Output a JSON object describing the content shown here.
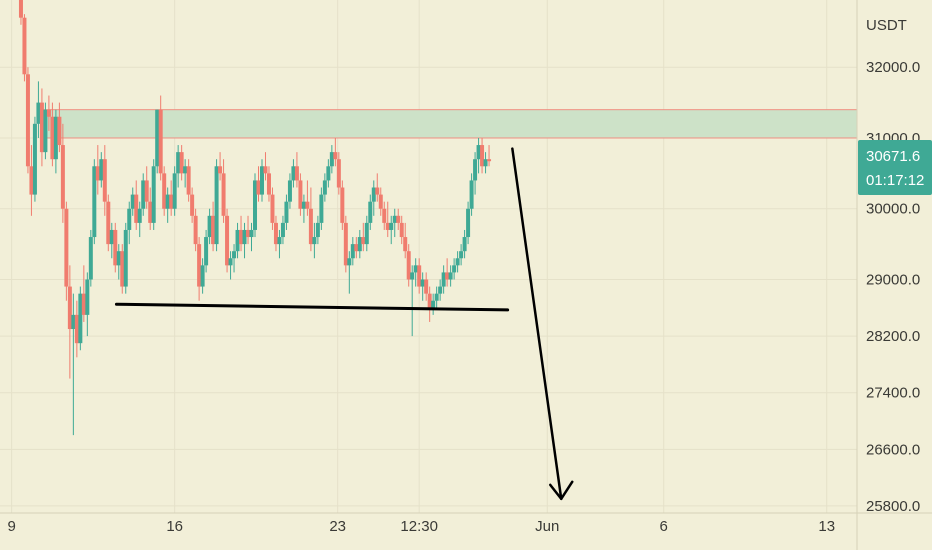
{
  "currency_label": "USDT",
  "price_badge": {
    "price": "30671.6",
    "countdown": "01:17:12",
    "color": "#3fa995"
  },
  "colors": {
    "background": "#f2efd8",
    "up": "#3fa995",
    "down": "#f07c6e",
    "zone_fill": "#cde2c8",
    "zone_border": "#ef8f82",
    "grid": "#e5e1c9",
    "drawing": "#000000"
  },
  "chart_data": {
    "type": "candlestick",
    "title": "",
    "xlabel": "",
    "ylabel": "",
    "x_ticks": [
      {
        "label": "9",
        "day": 9
      },
      {
        "label": "16",
        "day": 16
      },
      {
        "label": "23",
        "day": 23
      },
      {
        "label": "12:30",
        "day": 26.5
      },
      {
        "label": "Jun",
        "day": 32
      },
      {
        "label": "6",
        "day": 37
      },
      {
        "label": "13",
        "day": 44
      }
    ],
    "xlim": [
      8.5,
      45.3
    ],
    "y_ticks": [
      32000.0,
      31000.0,
      30000.0,
      29000.0,
      28200.0,
      27400.0,
      26600.0,
      25800.0
    ],
    "ylim": [
      25700,
      32950
    ],
    "grid": true,
    "resistance_zone": {
      "from": 31000,
      "to": 31400
    },
    "support_line": {
      "start": {
        "day": 13.5,
        "price": 28650
      },
      "end": {
        "day": 30.3,
        "price": 28570
      }
    },
    "projection_arrow": {
      "start": {
        "day": 30.5,
        "price": 30850
      },
      "end": {
        "day": 32.6,
        "price": 25900
      }
    },
    "series": [
      {
        "values": [
          [
            9.4,
            33000,
            33300,
            32600,
            32700
          ],
          [
            9.55,
            32700,
            32750,
            31800,
            31900
          ],
          [
            9.7,
            31900,
            32000,
            30500,
            30600
          ],
          [
            9.85,
            30600,
            30900,
            29900,
            30200
          ],
          [
            10.0,
            30200,
            31300,
            30100,
            31200
          ],
          [
            10.15,
            31200,
            31800,
            31000,
            31500
          ],
          [
            10.3,
            31500,
            31700,
            30600,
            30800
          ],
          [
            10.45,
            30800,
            31500,
            30700,
            31400
          ],
          [
            10.6,
            31400,
            31600,
            31100,
            31300
          ],
          [
            10.75,
            31300,
            31500,
            30600,
            30700
          ],
          [
            10.9,
            30700,
            31400,
            30500,
            31300
          ],
          [
            11.05,
            31300,
            31500,
            30800,
            30900
          ],
          [
            11.2,
            30900,
            31200,
            29800,
            30000
          ],
          [
            11.35,
            30000,
            30100,
            28700,
            28900
          ],
          [
            11.5,
            28900,
            29200,
            27600,
            28300
          ],
          [
            11.65,
            28300,
            28800,
            26800,
            28500
          ],
          [
            11.8,
            28500,
            28700,
            27900,
            28100
          ],
          [
            11.95,
            28100,
            28900,
            28000,
            28800
          ],
          [
            12.1,
            28800,
            29200,
            28400,
            28500
          ],
          [
            12.25,
            28500,
            29100,
            28200,
            29000
          ],
          [
            12.4,
            29000,
            29700,
            28900,
            29600
          ],
          [
            12.55,
            29600,
            30700,
            29500,
            30600
          ],
          [
            12.7,
            30600,
            30900,
            30200,
            30400
          ],
          [
            12.85,
            30400,
            30800,
            30300,
            30700
          ],
          [
            13.0,
            30700,
            30900,
            29900,
            30100
          ],
          [
            13.15,
            30100,
            30200,
            29400,
            29500
          ],
          [
            13.3,
            29500,
            29800,
            29300,
            29700
          ],
          [
            13.45,
            29700,
            29800,
            29100,
            29200
          ],
          [
            13.6,
            29200,
            29500,
            29000,
            29400
          ],
          [
            13.75,
            29400,
            29500,
            28800,
            28900
          ],
          [
            13.9,
            28900,
            29800,
            28800,
            29700
          ],
          [
            14.05,
            29700,
            30100,
            29500,
            30000
          ],
          [
            14.2,
            30000,
            30300,
            29900,
            30200
          ],
          [
            14.35,
            30200,
            30400,
            29700,
            29800
          ],
          [
            14.5,
            29800,
            30100,
            29600,
            30000
          ],
          [
            14.65,
            30000,
            30500,
            29900,
            30400
          ],
          [
            14.8,
            30400,
            30600,
            30000,
            30100
          ],
          [
            14.95,
            30100,
            30300,
            29700,
            29800
          ],
          [
            15.1,
            29800,
            30700,
            29700,
            30600
          ],
          [
            15.25,
            30600,
            31400,
            30500,
            31400
          ],
          [
            15.4,
            31400,
            31600,
            30400,
            30500
          ],
          [
            15.55,
            30500,
            30600,
            29900,
            30000
          ],
          [
            15.7,
            30000,
            30300,
            29800,
            30200
          ],
          [
            15.85,
            30200,
            30400,
            29900,
            30000
          ],
          [
            16.0,
            30000,
            30600,
            29900,
            30500
          ],
          [
            16.15,
            30500,
            30900,
            30300,
            30800
          ],
          [
            16.3,
            30800,
            30900,
            30400,
            30500
          ],
          [
            16.45,
            30500,
            30700,
            30300,
            30600
          ],
          [
            16.6,
            30600,
            30700,
            30100,
            30200
          ],
          [
            16.75,
            30200,
            30300,
            29800,
            29900
          ],
          [
            16.9,
            29900,
            30000,
            29400,
            29500
          ],
          [
            17.05,
            29500,
            29600,
            28700,
            28900
          ],
          [
            17.2,
            28900,
            29300,
            28800,
            29200
          ],
          [
            17.35,
            29200,
            29700,
            29100,
            29600
          ],
          [
            17.5,
            29600,
            30000,
            29500,
            29900
          ],
          [
            17.65,
            29900,
            30100,
            29400,
            29500
          ],
          [
            17.8,
            29500,
            30700,
            29400,
            30600
          ],
          [
            17.95,
            30600,
            30800,
            30400,
            30500
          ],
          [
            18.1,
            30500,
            30700,
            29800,
            29900
          ],
          [
            18.25,
            29900,
            30000,
            29100,
            29200
          ],
          [
            18.4,
            29200,
            29400,
            29000,
            29300
          ],
          [
            18.55,
            29300,
            29500,
            29100,
            29400
          ],
          [
            18.7,
            29400,
            29800,
            29300,
            29700
          ],
          [
            18.85,
            29700,
            29900,
            29400,
            29500
          ],
          [
            19.0,
            29500,
            29800,
            29300,
            29700
          ],
          [
            19.15,
            29700,
            29900,
            29500,
            29600
          ],
          [
            19.3,
            29600,
            29800,
            29400,
            29700
          ],
          [
            19.45,
            29700,
            30500,
            29600,
            30400
          ],
          [
            19.6,
            30400,
            30600,
            30100,
            30200
          ],
          [
            19.75,
            30200,
            30700,
            30100,
            30600
          ],
          [
            19.9,
            30600,
            30800,
            30400,
            30500
          ],
          [
            20.05,
            30500,
            30600,
            30100,
            30200
          ],
          [
            20.2,
            30200,
            30300,
            29700,
            29800
          ],
          [
            20.35,
            29800,
            29900,
            29400,
            29500
          ],
          [
            20.5,
            29500,
            29700,
            29300,
            29600
          ],
          [
            20.65,
            29600,
            29900,
            29500,
            29800
          ],
          [
            20.8,
            29800,
            30200,
            29700,
            30100
          ],
          [
            20.95,
            30100,
            30500,
            30000,
            30400
          ],
          [
            21.1,
            30400,
            30700,
            30300,
            30600
          ],
          [
            21.25,
            30600,
            30800,
            30300,
            30400
          ],
          [
            21.4,
            30400,
            30500,
            29900,
            30000
          ],
          [
            21.55,
            30000,
            30200,
            29800,
            30100
          ],
          [
            21.7,
            30100,
            30400,
            29900,
            30000
          ],
          [
            21.85,
            30000,
            30300,
            29400,
            29500
          ],
          [
            22.0,
            29500,
            29800,
            29300,
            29600
          ],
          [
            22.15,
            29600,
            29900,
            29500,
            29800
          ],
          [
            22.3,
            29800,
            30300,
            29700,
            30200
          ],
          [
            22.45,
            30200,
            30500,
            30100,
            30400
          ],
          [
            22.6,
            30400,
            30700,
            30300,
            30600
          ],
          [
            22.75,
            30600,
            30900,
            30500,
            30800
          ],
          [
            22.9,
            30800,
            31000,
            30600,
            30700
          ],
          [
            23.05,
            30700,
            30800,
            30200,
            30300
          ],
          [
            23.2,
            30300,
            30400,
            29700,
            29800
          ],
          [
            23.35,
            29800,
            29900,
            29100,
            29200
          ],
          [
            23.5,
            29200,
            29400,
            28800,
            29300
          ],
          [
            23.65,
            29300,
            29600,
            29200,
            29500
          ],
          [
            23.8,
            29500,
            29600,
            29300,
            29400
          ],
          [
            23.95,
            29400,
            29700,
            29300,
            29600
          ],
          [
            24.1,
            29600,
            29800,
            29400,
            29500
          ],
          [
            24.25,
            29500,
            29900,
            29400,
            29800
          ],
          [
            24.4,
            29800,
            30200,
            29700,
            30100
          ],
          [
            24.55,
            30100,
            30400,
            29900,
            30300
          ],
          [
            24.7,
            30300,
            30500,
            30100,
            30200
          ],
          [
            24.85,
            30200,
            30300,
            29900,
            30000
          ],
          [
            25.0,
            30000,
            30100,
            29700,
            29800
          ],
          [
            25.15,
            29800,
            30100,
            29600,
            29700
          ],
          [
            25.3,
            29700,
            29900,
            29500,
            29800
          ],
          [
            25.45,
            29800,
            30000,
            29600,
            29900
          ],
          [
            25.6,
            29900,
            30000,
            29700,
            29800
          ],
          [
            25.75,
            29800,
            29900,
            29500,
            29600
          ],
          [
            25.9,
            29600,
            29800,
            29300,
            29400
          ],
          [
            26.05,
            29400,
            29500,
            28900,
            29000
          ],
          [
            26.2,
            29000,
            29200,
            28200,
            29100
          ],
          [
            26.35,
            29100,
            29300,
            28900,
            29200
          ],
          [
            26.5,
            29200,
            29300,
            28800,
            28900
          ],
          [
            26.65,
            28900,
            29100,
            28700,
            29000
          ],
          [
            26.8,
            29000,
            29100,
            28700,
            28800
          ],
          [
            26.95,
            28800,
            28900,
            28400,
            28600
          ],
          [
            27.1,
            28600,
            28800,
            28500,
            28700
          ],
          [
            27.25,
            28700,
            28900,
            28600,
            28800
          ],
          [
            27.4,
            28800,
            29000,
            28700,
            28900
          ],
          [
            27.55,
            28900,
            29200,
            28800,
            29100
          ],
          [
            27.7,
            29100,
            29300,
            28900,
            29000
          ],
          [
            27.85,
            29000,
            29200,
            28900,
            29100
          ],
          [
            28.0,
            29100,
            29300,
            29000,
            29200
          ],
          [
            28.15,
            29200,
            29400,
            29100,
            29300
          ],
          [
            28.3,
            29300,
            29500,
            29200,
            29400
          ],
          [
            28.45,
            29400,
            29700,
            29300,
            29600
          ],
          [
            28.6,
            29600,
            30100,
            29500,
            30000
          ],
          [
            28.75,
            30000,
            30500,
            29900,
            30400
          ],
          [
            28.9,
            30400,
            30800,
            30200,
            30700
          ],
          [
            29.05,
            30700,
            31000,
            30500,
            30900
          ],
          [
            29.2,
            30900,
            31000,
            30500,
            30600
          ],
          [
            29.35,
            30600,
            30800,
            30500,
            30700
          ],
          [
            29.5,
            30700,
            30900,
            30600,
            30671.6
          ]
        ]
      }
    ]
  }
}
